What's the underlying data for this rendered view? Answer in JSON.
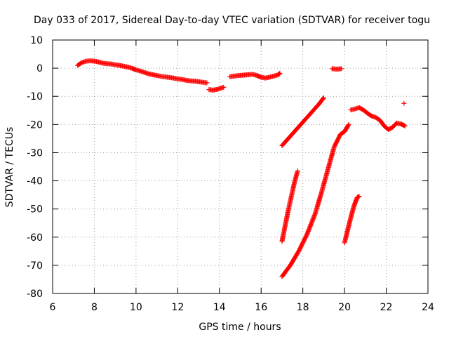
{
  "chart_data": {
    "type": "scatter",
    "title": "Day 033 of 2017, Sidereal Day-to-day VTEC variation (SDTVAR) for receiver togu",
    "xlabel": "GPS time / hours",
    "ylabel": "SDTVAR / TECUs",
    "xlim": [
      6,
      24
    ],
    "ylim": [
      -80,
      10
    ],
    "xticks": [
      6,
      8,
      10,
      12,
      14,
      16,
      18,
      20,
      22,
      24
    ],
    "yticks": [
      10,
      0,
      -10,
      -20,
      -30,
      -40,
      -50,
      -60,
      -70,
      -80
    ],
    "grid": true,
    "grid_style": "dotted",
    "legend": "none",
    "marker": "plus",
    "color": "#ff0000",
    "series": [
      {
        "segments": [
          [
            [
              7.2,
              1.0
            ],
            [
              7.4,
              2.0
            ],
            [
              7.6,
              2.5
            ],
            [
              7.8,
              2.6
            ],
            [
              8.0,
              2.5
            ],
            [
              8.2,
              2.2
            ],
            [
              8.4,
              1.8
            ],
            [
              8.6,
              1.6
            ],
            [
              8.8,
              1.5
            ],
            [
              9.0,
              1.2
            ],
            [
              9.2,
              1.0
            ],
            [
              9.4,
              0.7
            ],
            [
              9.6,
              0.4
            ],
            [
              9.8,
              0.0
            ],
            [
              10.0,
              -0.6
            ],
            [
              10.2,
              -1.0
            ],
            [
              10.4,
              -1.5
            ],
            [
              10.6,
              -2.0
            ],
            [
              10.8,
              -2.3
            ],
            [
              11.0,
              -2.6
            ],
            [
              11.2,
              -2.9
            ],
            [
              11.4,
              -3.1
            ],
            [
              11.6,
              -3.3
            ],
            [
              11.8,
              -3.5
            ],
            [
              12.0,
              -3.8
            ],
            [
              12.2,
              -4.0
            ],
            [
              12.4,
              -4.3
            ],
            [
              12.6,
              -4.5
            ],
            [
              12.8,
              -4.6
            ],
            [
              13.0,
              -4.8
            ],
            [
              13.2,
              -5.0
            ],
            [
              13.4,
              -5.2
            ]
          ],
          [
            [
              13.5,
              -7.6
            ],
            [
              13.7,
              -7.8
            ],
            [
              13.9,
              -7.5
            ],
            [
              14.1,
              -7.0
            ],
            [
              14.2,
              -6.8
            ]
          ],
          [
            [
              14.5,
              -3.0
            ],
            [
              14.8,
              -2.7
            ],
            [
              15.1,
              -2.5
            ],
            [
              15.4,
              -2.3
            ],
            [
              15.6,
              -2.2
            ],
            [
              15.8,
              -2.6
            ],
            [
              16.0,
              -3.2
            ],
            [
              16.2,
              -3.5
            ],
            [
              16.4,
              -3.2
            ],
            [
              16.6,
              -2.8
            ],
            [
              16.8,
              -2.4
            ],
            [
              16.9,
              -1.8
            ]
          ],
          [
            [
              17.0,
              -27.5
            ],
            [
              17.3,
              -25.0
            ],
            [
              17.6,
              -22.5
            ],
            [
              17.9,
              -20.0
            ],
            [
              18.2,
              -17.5
            ],
            [
              18.5,
              -15.0
            ],
            [
              18.8,
              -12.5
            ],
            [
              19.0,
              -10.5
            ]
          ],
          [
            [
              17.0,
              -61.5
            ],
            [
              17.15,
              -56.0
            ],
            [
              17.3,
              -50.5
            ],
            [
              17.45,
              -45.5
            ],
            [
              17.6,
              -40.5
            ],
            [
              17.75,
              -36.5
            ]
          ],
          [
            [
              17.0,
              -74.0
            ],
            [
              17.4,
              -70.0
            ],
            [
              17.8,
              -65.0
            ],
            [
              18.2,
              -59.0
            ],
            [
              18.6,
              -51.5
            ],
            [
              18.9,
              -44.0
            ],
            [
              19.2,
              -36.0
            ],
            [
              19.5,
              -28.0
            ],
            [
              19.8,
              -23.5
            ],
            [
              20.0,
              -22.5
            ],
            [
              20.2,
              -20.0
            ]
          ],
          [
            [
              19.4,
              -0.2
            ],
            [
              19.55,
              -0.3
            ],
            [
              19.7,
              -0.3
            ],
            [
              19.85,
              -0.2
            ]
          ],
          [
            [
              20.0,
              -62.0
            ],
            [
              20.15,
              -57.5
            ],
            [
              20.3,
              -53.0
            ],
            [
              20.45,
              -49.0
            ],
            [
              20.6,
              -46.0
            ],
            [
              20.7,
              -45.5
            ]
          ],
          [
            [
              20.3,
              -14.8
            ],
            [
              20.5,
              -14.5
            ],
            [
              20.7,
              -14.0
            ],
            [
              20.9,
              -14.8
            ],
            [
              21.1,
              -16.0
            ],
            [
              21.3,
              -17.0
            ],
            [
              21.5,
              -17.5
            ],
            [
              21.7,
              -18.5
            ],
            [
              21.9,
              -20.5
            ],
            [
              22.1,
              -21.8
            ],
            [
              22.3,
              -21.0
            ],
            [
              22.5,
              -19.5
            ],
            [
              22.7,
              -19.8
            ],
            [
              22.9,
              -20.5
            ]
          ],
          [
            [
              22.85,
              -12.5
            ]
          ]
        ]
      }
    ]
  }
}
